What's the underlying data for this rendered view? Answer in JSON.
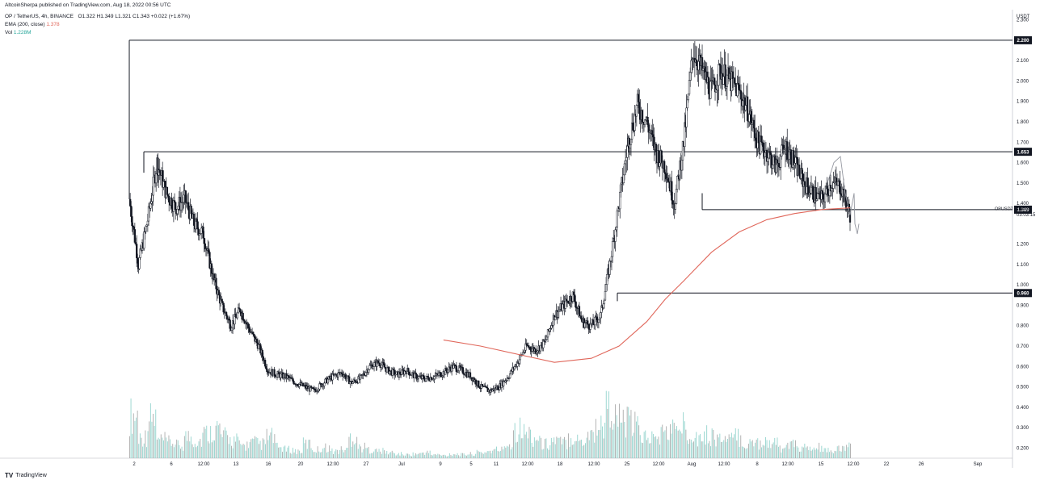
{
  "header": {
    "publisher": "AltcoinSherpa published on TradingView.com, Aug 18, 2022 00:56 UTC",
    "symbol": "OP / TetherUS, 4h, BINANCE",
    "ohlc": "O1.322  H1.349  L1.321  C1.343  +0.022 (+1.67%)",
    "ema_label": "EMA (200, close)",
    "ema_value": "1.378",
    "vol_label": "Vol",
    "vol_value": "1.228M"
  },
  "watermark": {
    "logo": "TV",
    "text": "TradingView"
  },
  "colors": {
    "candle": "#131722",
    "ema": "#e0675b",
    "volume": "#26a69a",
    "level_box": "#131722"
  },
  "chart_data": {
    "type": "candlestick",
    "currency_label": "USDT",
    "ylim": [
      0.15,
      2.35
    ],
    "y_ticks": [
      "2.300",
      "2.100",
      "2.000",
      "1.900",
      "1.800",
      "1.700",
      "1.600",
      "1.500",
      "1.400",
      "1.200",
      "1.100",
      "1.000",
      "0.900",
      "0.800",
      "0.700",
      "0.600",
      "0.500",
      "0.400",
      "0.300",
      "0.200"
    ],
    "x_ticks": [
      "2",
      "6",
      "12:00",
      "13",
      "16",
      "20",
      "12:00",
      "27",
      "Jul",
      "9",
      "5",
      "11",
      "12:00",
      "18",
      "12:00",
      "25",
      "12:00",
      "Aug",
      "12:00",
      "8",
      "12:00",
      "15",
      "12:00",
      "22",
      "26",
      "Sep"
    ],
    "levels": [
      {
        "label": "2.200",
        "value": 2.2
      },
      {
        "label": "1.653",
        "value": 1.653
      },
      {
        "label": "1.369",
        "value": 1.369
      },
      {
        "label": "0.960",
        "value": 0.96
      }
    ],
    "last_price": {
      "symbol": "OPUSDT",
      "value": "1.343",
      "countdown": "03:03:15"
    },
    "price_path": [
      [
        0,
        1.42
      ],
      [
        1,
        1.1
      ],
      [
        2,
        1.32
      ],
      [
        3,
        1.6
      ],
      [
        4,
        1.45
      ],
      [
        5,
        1.38
      ],
      [
        6,
        1.42
      ],
      [
        7,
        1.3
      ],
      [
        8,
        1.25
      ],
      [
        9,
        1.05
      ],
      [
        10,
        0.9
      ],
      [
        11,
        0.8
      ],
      [
        12,
        0.88
      ],
      [
        13,
        0.78
      ],
      [
        14,
        0.7
      ],
      [
        15,
        0.58
      ],
      [
        16,
        0.56
      ],
      [
        17,
        0.55
      ],
      [
        18,
        0.52
      ],
      [
        19,
        0.5
      ],
      [
        20,
        0.48
      ],
      [
        21,
        0.52
      ],
      [
        22,
        0.55
      ],
      [
        23,
        0.57
      ],
      [
        24,
        0.52
      ],
      [
        25,
        0.54
      ],
      [
        26,
        0.6
      ],
      [
        27,
        0.62
      ],
      [
        28,
        0.58
      ],
      [
        29,
        0.56
      ],
      [
        30,
        0.58
      ],
      [
        31,
        0.55
      ],
      [
        32,
        0.54
      ],
      [
        33,
        0.55
      ],
      [
        34,
        0.57
      ],
      [
        35,
        0.6
      ],
      [
        36,
        0.58
      ],
      [
        37,
        0.55
      ],
      [
        38,
        0.5
      ],
      [
        39,
        0.48
      ],
      [
        40,
        0.5
      ],
      [
        41,
        0.55
      ],
      [
        42,
        0.62
      ],
      [
        43,
        0.7
      ],
      [
        44,
        0.68
      ],
      [
        45,
        0.72
      ],
      [
        46,
        0.85
      ],
      [
        47,
        0.9
      ],
      [
        48,
        0.95
      ],
      [
        49,
        0.82
      ],
      [
        50,
        0.8
      ],
      [
        51,
        0.85
      ],
      [
        52,
        1.1
      ],
      [
        53,
        1.4
      ],
      [
        54,
        1.7
      ],
      [
        55,
        1.88
      ],
      [
        56,
        1.8
      ],
      [
        57,
        1.65
      ],
      [
        58,
        1.58
      ],
      [
        59,
        1.4
      ],
      [
        60,
        1.7
      ],
      [
        61,
        2.15
      ],
      [
        62,
        2.05
      ],
      [
        63,
        1.95
      ],
      [
        64,
        2.05
      ],
      [
        65,
        2.0
      ],
      [
        66,
        1.95
      ],
      [
        67,
        1.85
      ],
      [
        68,
        1.7
      ],
      [
        69,
        1.65
      ],
      [
        70,
        1.58
      ],
      [
        71,
        1.68
      ],
      [
        72,
        1.6
      ],
      [
        73,
        1.5
      ],
      [
        74,
        1.45
      ],
      [
        75,
        1.42
      ],
      [
        76,
        1.5
      ],
      [
        77,
        1.48
      ],
      [
        78,
        1.343
      ]
    ],
    "ema_path": [
      [
        34,
        0.73
      ],
      [
        38,
        0.7
      ],
      [
        42,
        0.66
      ],
      [
        46,
        0.62
      ],
      [
        50,
        0.64
      ],
      [
        53,
        0.7
      ],
      [
        56,
        0.82
      ],
      [
        58,
        0.93
      ],
      [
        60,
        1.02
      ],
      [
        63,
        1.16
      ],
      [
        66,
        1.26
      ],
      [
        69,
        1.32
      ],
      [
        72,
        1.35
      ],
      [
        75,
        1.37
      ],
      [
        78,
        1.378
      ]
    ],
    "volume": [
      0.6,
      0.3,
      0.55,
      0.25,
      0.22,
      0.18,
      0.3,
      0.25,
      0.35,
      0.42,
      0.3,
      0.25,
      0.18,
      0.22,
      0.2,
      0.3,
      0.15,
      0.12,
      0.1,
      0.2,
      0.12,
      0.15,
      0.1,
      0.12,
      0.3,
      0.15,
      0.12,
      0.1,
      0.08,
      0.06,
      0.05,
      0.06,
      0.08,
      0.05,
      0.04,
      0.06,
      0.05,
      0.06,
      0.08,
      0.1,
      0.12,
      0.2,
      0.42,
      0.35,
      0.28,
      0.2,
      0.25,
      0.22,
      0.3,
      0.25,
      0.35,
      0.45,
      0.7,
      0.55,
      0.5,
      0.45,
      0.3,
      0.28,
      0.35,
      0.4,
      0.45,
      0.38,
      0.3,
      0.32,
      0.28,
      0.25,
      0.3,
      0.2,
      0.22,
      0.25,
      0.2,
      0.15,
      0.18,
      0.15,
      0.12,
      0.15,
      0.1,
      0.12,
      0.15
    ]
  }
}
